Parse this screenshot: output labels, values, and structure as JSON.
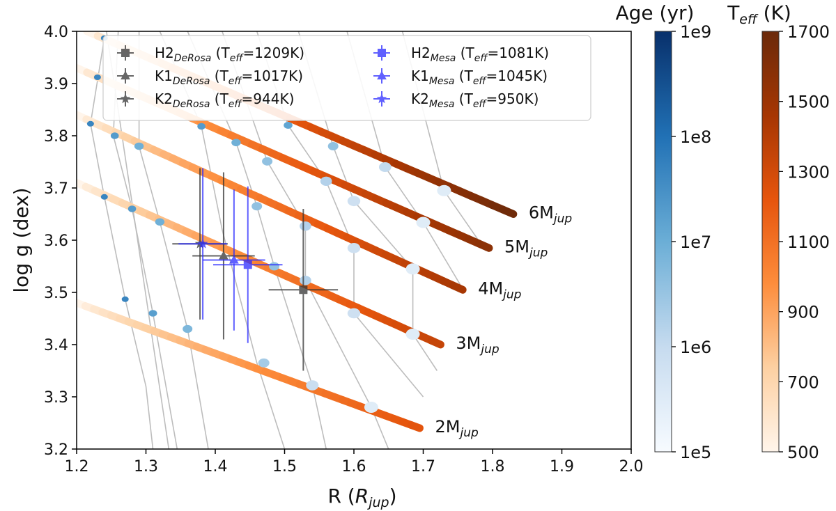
{
  "chart_data": {
    "type": "scatter",
    "xlabel": "R (",
    "xlabel_sub": "R",
    "xlabel_subscript": "jup",
    "xlabel_end": ")",
    "ylabel": "log g (dex)",
    "xlim": [
      1.2,
      2.0
    ],
    "ylim": [
      3.2,
      4.0
    ],
    "xticks": [
      "1.2",
      "1.3",
      "1.4",
      "1.5",
      "1.6",
      "1.7",
      "1.8",
      "1.9",
      "2.0"
    ],
    "yticks": [
      "3.2",
      "3.3",
      "3.4",
      "3.5",
      "3.6",
      "3.7",
      "3.8",
      "3.9",
      "4.0"
    ],
    "mass_tracks": [
      {
        "label_main": "2M",
        "label_sub": "jup",
        "r_start": 1.2,
        "g_start": 3.48,
        "r_end": 1.695,
        "g_end": 3.24,
        "age_points": [
          [
            1.27,
            3.487
          ],
          [
            1.31,
            3.46
          ],
          [
            1.36,
            3.43
          ],
          [
            1.47,
            3.365
          ],
          [
            1.54,
            3.322
          ],
          [
            1.625,
            3.28
          ]
        ]
      },
      {
        "label_main": "3M",
        "label_sub": "jup",
        "r_start": 1.2,
        "g_start": 3.71,
        "r_end": 1.725,
        "g_end": 3.4,
        "age_points": [
          [
            1.24,
            3.683
          ],
          [
            1.28,
            3.66
          ],
          [
            1.32,
            3.635
          ],
          [
            1.485,
            3.55
          ],
          [
            1.53,
            3.523
          ],
          [
            1.6,
            3.46
          ],
          [
            1.685,
            3.42
          ]
        ]
      },
      {
        "label_main": "4M",
        "label_sub": "jup",
        "r_start": 1.2,
        "g_start": 3.84,
        "r_end": 1.757,
        "g_end": 3.505,
        "age_points": [
          [
            1.22,
            3.823
          ],
          [
            1.255,
            3.8
          ],
          [
            1.29,
            3.78
          ],
          [
            1.46,
            3.665
          ],
          [
            1.53,
            3.627
          ],
          [
            1.6,
            3.585
          ],
          [
            1.685,
            3.545
          ]
        ]
      },
      {
        "label_main": "5M",
        "label_sub": "jup",
        "r_start": 1.2,
        "g_start": 3.93,
        "r_end": 1.795,
        "g_end": 3.585,
        "age_points": [
          [
            1.23,
            3.912
          ],
          [
            1.38,
            3.818
          ],
          [
            1.43,
            3.787
          ],
          [
            1.475,
            3.751
          ],
          [
            1.56,
            3.713
          ],
          [
            1.6,
            3.675
          ],
          [
            1.7,
            3.634
          ]
        ]
      },
      {
        "label_main": "6M",
        "label_sub": "jup",
        "r_start": 1.215,
        "g_start": 4.0,
        "r_end": 1.83,
        "g_end": 3.65,
        "age_points": [
          [
            1.24,
            3.987
          ],
          [
            1.505,
            3.82
          ],
          [
            1.57,
            3.78
          ],
          [
            1.645,
            3.74
          ],
          [
            1.73,
            3.695
          ]
        ]
      }
    ],
    "isochrones": [
      [
        [
          1.243,
          4.0
        ],
        [
          1.333,
          3.2
        ]
      ],
      [
        [
          1.24,
          3.987
        ],
        [
          1.22,
          3.823
        ],
        [
          1.24,
          3.683
        ],
        [
          1.27,
          3.487
        ],
        [
          1.3,
          3.32
        ],
        [
          1.31,
          3.2
        ]
      ],
      [
        [
          1.26,
          4.0
        ],
        [
          1.253,
          3.8
        ],
        [
          1.28,
          3.66
        ],
        [
          1.31,
          3.46
        ],
        [
          1.345,
          3.2
        ]
      ],
      [
        [
          1.29,
          4.0
        ],
        [
          1.29,
          3.78
        ],
        [
          1.32,
          3.635
        ],
        [
          1.36,
          3.43
        ],
        [
          1.39,
          3.2
        ]
      ],
      [
        [
          1.32,
          4.0
        ],
        [
          1.38,
          3.818
        ],
        [
          1.41,
          3.62
        ],
        [
          1.46,
          3.365
        ],
        [
          1.5,
          3.2
        ]
      ],
      [
        [
          1.36,
          4.0
        ],
        [
          1.43,
          3.787
        ],
        [
          1.46,
          3.665
        ],
        [
          1.485,
          3.55
        ],
        [
          1.54,
          3.322
        ],
        [
          1.56,
          3.2
        ]
      ],
      [
        [
          1.41,
          4.0
        ],
        [
          1.475,
          3.751
        ],
        [
          1.53,
          3.627
        ],
        [
          1.53,
          3.523
        ],
        [
          1.625,
          3.28
        ],
        [
          1.65,
          3.2
        ]
      ],
      [
        [
          1.46,
          4.0
        ],
        [
          1.505,
          3.82
        ],
        [
          1.56,
          3.713
        ],
        [
          1.6,
          3.585
        ],
        [
          1.6,
          3.46
        ],
        [
          1.7,
          3.3
        ]
      ],
      [
        [
          1.52,
          4.0
        ],
        [
          1.57,
          3.78
        ],
        [
          1.6,
          3.675
        ],
        [
          1.685,
          3.545
        ],
        [
          1.685,
          3.42
        ],
        [
          1.72,
          3.35
        ]
      ],
      [
        [
          1.59,
          4.0
        ],
        [
          1.645,
          3.74
        ],
        [
          1.7,
          3.634
        ],
        [
          1.76,
          3.5
        ]
      ],
      [
        [
          1.67,
          4.0
        ],
        [
          1.73,
          3.695
        ],
        [
          1.79,
          3.58
        ]
      ]
    ],
    "series": [
      {
        "name": "H2",
        "sub": "DeRosa",
        "teff": "T",
        "teff_sub": "eff",
        "teff_val": "=1209K)",
        "marker": "square",
        "color": "#333333",
        "x": 1.527,
        "y": 3.505,
        "xerr": 0.05,
        "yerr": 0.155
      },
      {
        "name": "K1",
        "sub": "DeRosa",
        "teff": "T",
        "teff_sub": "eff",
        "teff_val": "=1017K)",
        "marker": "triangle",
        "color": "#333333",
        "x": 1.412,
        "y": 3.57,
        "xerr": 0.045,
        "yerr": 0.16
      },
      {
        "name": "K2",
        "sub": "DeRosa",
        "teff": "T",
        "teff_sub": "eff",
        "teff_val": "=944K)",
        "marker": "star",
        "color": "#333333",
        "x": 1.378,
        "y": 3.593,
        "xerr": 0.04,
        "yerr": 0.145
      },
      {
        "name": "H2",
        "sub": "Mesa",
        "teff": "T",
        "teff_sub": "eff",
        "teff_val": "=1081K)",
        "marker": "square",
        "color": "#2b2bff",
        "x": 1.447,
        "y": 3.553,
        "xerr": 0.05,
        "yerr": 0.15
      },
      {
        "name": "K1",
        "sub": "Mesa",
        "teff": "T",
        "teff_sub": "eff",
        "teff_val": "=1045K)",
        "marker": "triangle",
        "color": "#2b2bff",
        "x": 1.427,
        "y": 3.562,
        "xerr": 0.045,
        "yerr": 0.135
      },
      {
        "name": "K2",
        "sub": "Mesa",
        "teff": "T",
        "teff_sub": "eff",
        "teff_val": "=950K)",
        "marker": "star",
        "color": "#2b2bff",
        "x": 1.382,
        "y": 3.593,
        "xerr": 0.035,
        "yerr": 0.145
      }
    ],
    "legend_position": "top",
    "colorbars": [
      {
        "title": "Age (yr)",
        "title_main": "Age (yr)",
        "ticks": [
          "1e5",
          "1e6",
          "1e7",
          "1e8",
          "1e9"
        ],
        "colors": [
          "#f7fbff",
          "#c6dbef",
          "#6baed6",
          "#2171b5",
          "#08306b"
        ]
      },
      {
        "title_main": "T",
        "title_sub": "eff",
        "title_end": " (K)",
        "ticks": [
          "500",
          "700",
          "900",
          "1100",
          "1300",
          "1500",
          "1700"
        ],
        "colors": [
          "#fff5eb",
          "#fdd0a2",
          "#fd8d3c",
          "#e6550d",
          "#a63603",
          "#6b2a0a"
        ]
      }
    ],
    "teff_range": [
      500,
      1700
    ]
  }
}
